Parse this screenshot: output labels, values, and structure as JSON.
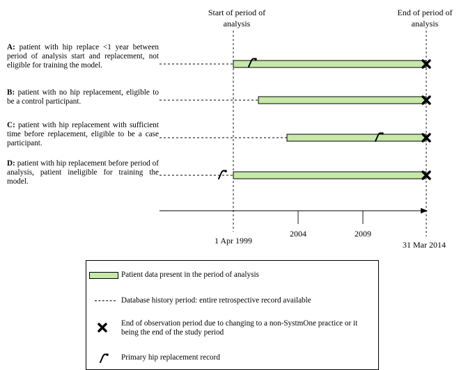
{
  "header": {
    "start_label_line1": "Start of period of",
    "start_label_line2": "analysis",
    "end_label_line1": "End of period of",
    "end_label_line2": "analysis"
  },
  "cases": [
    {
      "letter": "A:",
      "text": "patient with hip replace <1 year between period of analysis start and replacement, not eligible for training the model."
    },
    {
      "letter": "B:",
      "text": "patient with no hip replacement, eligible to be a control participant."
    },
    {
      "letter": "C:",
      "text": "patient with hip replacement with sufficient time before replacement, eligible to be a case participant."
    },
    {
      "letter": "D:",
      "text": "patient with hip replacement before period of analysis, patient ineligible for training the model."
    }
  ],
  "axis": {
    "ticks": [
      "1 Apr 1999",
      "2004",
      "2009",
      "31 Mar 2014"
    ]
  },
  "legend": {
    "green_bar": "Patient data present in the period of analysis",
    "dashed_line": "Database history period: entire retrospective record available",
    "cross": "End of observation period due to changing to a non-SystmOne practice or it being the end of the study period",
    "hip_record": "Primary hip replacement record"
  },
  "colors": {
    "bar_fill": "#c6e8a8",
    "outline": "#000000"
  },
  "icons": [
    "cross-icon",
    "hip-replacement-icon"
  ]
}
